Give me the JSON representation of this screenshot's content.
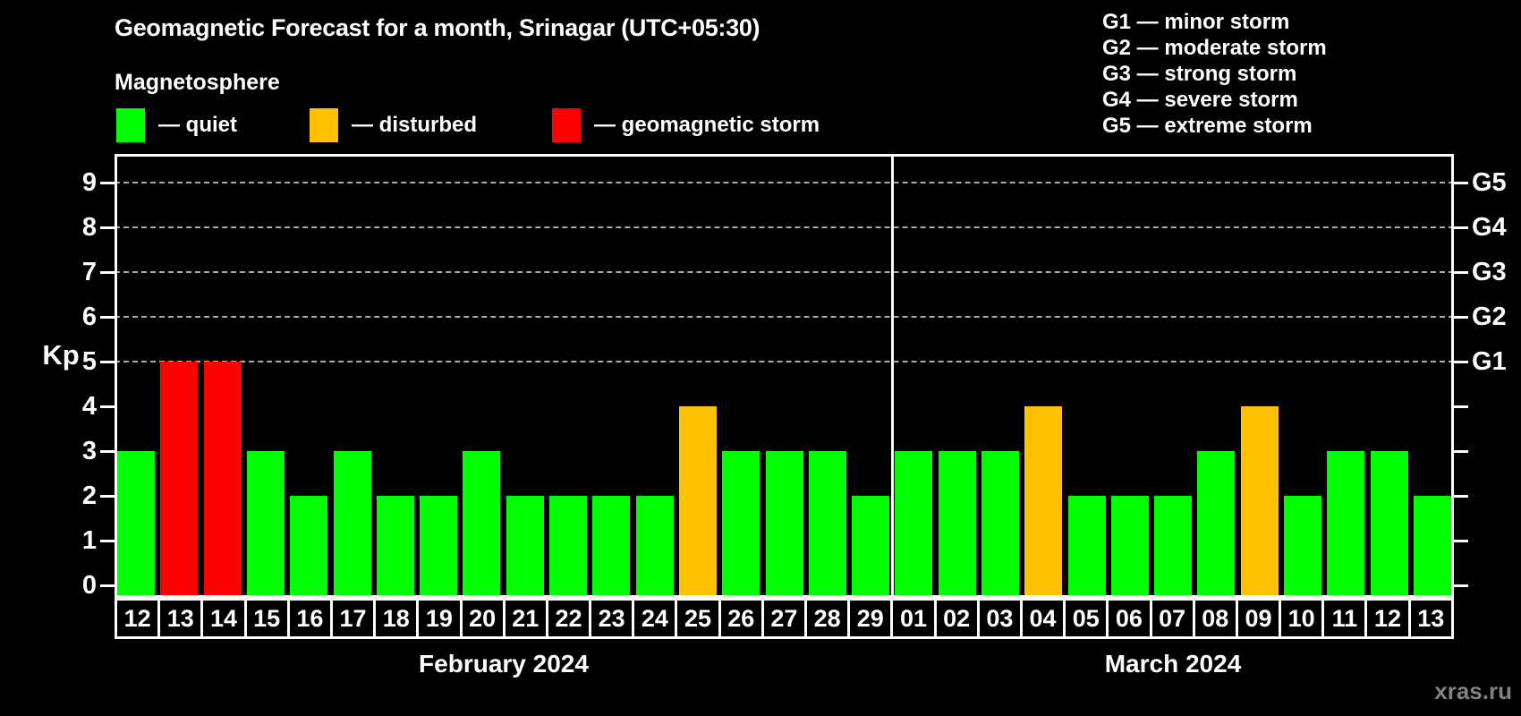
{
  "header": {
    "title": "Geomagnetic Forecast for a month, Srinagar (UTC+05:30)"
  },
  "legend": {
    "title": "Magnetosphere",
    "items": [
      {
        "key": "quiet",
        "label": "— quiet",
        "color": "#00ff00"
      },
      {
        "key": "disturbed",
        "label": "— disturbed",
        "color": "#ffc000"
      },
      {
        "key": "storm",
        "label": "— geomagnetic storm",
        "color": "#ff0000"
      }
    ]
  },
  "g_legend": {
    "items": [
      {
        "text": "G1 — minor storm"
      },
      {
        "text": "G2 — moderate storm"
      },
      {
        "text": "G3 — strong storm"
      },
      {
        "text": "G4 — severe storm"
      },
      {
        "text": "G5 — extreme storm"
      }
    ]
  },
  "watermark": "xras.ru",
  "chart_data": {
    "type": "bar",
    "title": "Geomagnetic Forecast for a month, Srinagar (UTC+05:30)",
    "ylabel": "Kp",
    "ylim": [
      0,
      9.6
    ],
    "yticks": [
      0,
      1,
      2,
      3,
      4,
      5,
      6,
      7,
      8,
      9
    ],
    "gridlines_at": [
      5,
      6,
      7,
      8,
      9
    ],
    "grid": "dashed-horizontal",
    "legend_position": "top-left",
    "background": "#000000",
    "status_colors": {
      "quiet": "#00ff00",
      "disturbed": "#ffc000",
      "storm": "#ff0000"
    },
    "right_axis": [
      {
        "label": "G1",
        "kp": 5
      },
      {
        "label": "G2",
        "kp": 6
      },
      {
        "label": "G3",
        "kp": 7
      },
      {
        "label": "G4",
        "kp": 8
      },
      {
        "label": "G5",
        "kp": 9
      }
    ],
    "months": [
      {
        "label": "February 2024",
        "days": [
          {
            "day": "12",
            "kp": 3,
            "status": "quiet"
          },
          {
            "day": "13",
            "kp": 5,
            "status": "storm"
          },
          {
            "day": "14",
            "kp": 5,
            "status": "storm"
          },
          {
            "day": "15",
            "kp": 3,
            "status": "quiet"
          },
          {
            "day": "16",
            "kp": 2,
            "status": "quiet"
          },
          {
            "day": "17",
            "kp": 3,
            "status": "quiet"
          },
          {
            "day": "18",
            "kp": 2,
            "status": "quiet"
          },
          {
            "day": "19",
            "kp": 2,
            "status": "quiet"
          },
          {
            "day": "20",
            "kp": 3,
            "status": "quiet"
          },
          {
            "day": "21",
            "kp": 2,
            "status": "quiet"
          },
          {
            "day": "22",
            "kp": 2,
            "status": "quiet"
          },
          {
            "day": "23",
            "kp": 2,
            "status": "quiet"
          },
          {
            "day": "24",
            "kp": 2,
            "status": "quiet"
          },
          {
            "day": "25",
            "kp": 4,
            "status": "disturbed"
          },
          {
            "day": "26",
            "kp": 3,
            "status": "quiet"
          },
          {
            "day": "27",
            "kp": 3,
            "status": "quiet"
          },
          {
            "day": "28",
            "kp": 3,
            "status": "quiet"
          },
          {
            "day": "29",
            "kp": 2,
            "status": "quiet"
          }
        ]
      },
      {
        "label": "March 2024",
        "days": [
          {
            "day": "01",
            "kp": 3,
            "status": "quiet"
          },
          {
            "day": "02",
            "kp": 3,
            "status": "quiet"
          },
          {
            "day": "03",
            "kp": 3,
            "status": "quiet"
          },
          {
            "day": "04",
            "kp": 4,
            "status": "disturbed"
          },
          {
            "day": "05",
            "kp": 2,
            "status": "quiet"
          },
          {
            "day": "06",
            "kp": 2,
            "status": "quiet"
          },
          {
            "day": "07",
            "kp": 2,
            "status": "quiet"
          },
          {
            "day": "08",
            "kp": 3,
            "status": "quiet"
          },
          {
            "day": "09",
            "kp": 4,
            "status": "disturbed"
          },
          {
            "day": "10",
            "kp": 2,
            "status": "quiet"
          },
          {
            "day": "11",
            "kp": 3,
            "status": "quiet"
          },
          {
            "day": "12",
            "kp": 3,
            "status": "quiet"
          },
          {
            "day": "13",
            "kp": 2,
            "status": "quiet"
          }
        ]
      }
    ]
  }
}
